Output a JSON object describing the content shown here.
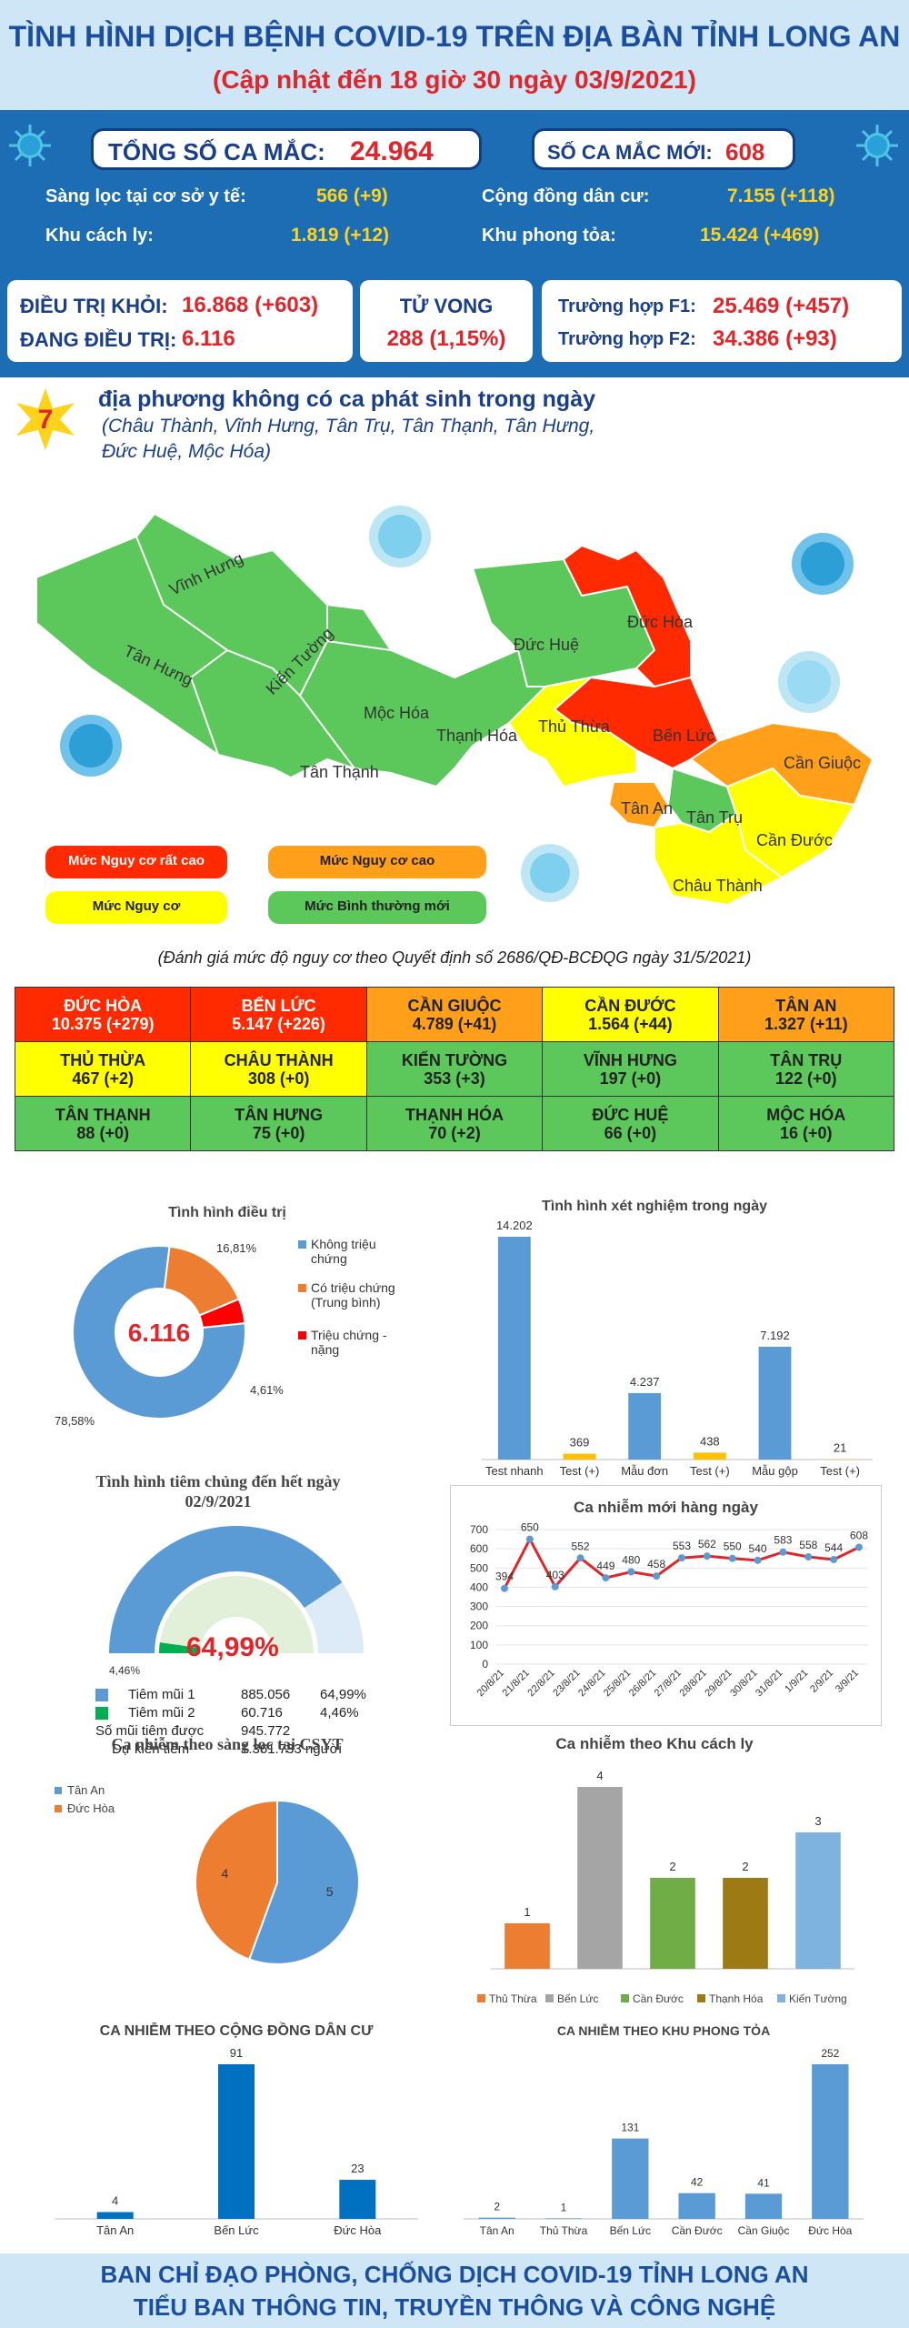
{
  "header": {
    "title": "TÌNH HÌNH DỊCH BỆNH COVID-19 TRÊN ĐỊA BÀN TỈNH LONG AN",
    "subtitle": "(Cập nhật đến 18 giờ 30 ngày 03/9/2021)"
  },
  "stats": {
    "total_label": "TỔNG SỐ CA MẮC:",
    "total_value": "24.964",
    "new_label": "SỐ CA MẮC MỚI:",
    "new_value": "608",
    "screening_label": "Sàng lọc tại cơ sở y tế:",
    "screening_value": "566 (+9)",
    "community_label": "Cộng đồng dân cư:",
    "community_value": "7.155 (+118)",
    "quarantine_label": "Khu cách ly:",
    "quarantine_value": "1.819 (+12)",
    "lockdown_label": "Khu phong tỏa:",
    "lockdown_value": "15.424 (+469)",
    "recovered_label": "ĐIỀU TRỊ KHỎI:",
    "recovered_value": "16.868 (+603)",
    "treating_label": "ĐANG ĐIỀU TRỊ:",
    "treating_value": "6.116",
    "death_label": "TỬ VONG",
    "death_value": "288 (1,15%)",
    "f1_label": "Trường hợp F1:",
    "f1_value": "25.469 (+457)",
    "f2_label": "Trường hợp F2:",
    "f2_value": "34.386 (+93)"
  },
  "map": {
    "badge": "7",
    "headline": "địa phương không có ca phát sinh trong ngày",
    "sub1": "(Châu Thành, Vĩnh Hưng, Tân Trụ, Tân Thạnh, Tân Hưng,",
    "sub2": "Đức Huệ, Mộc Hóa)",
    "districts": [
      "Vĩnh Hưng",
      "Tân Hưng",
      "Kiến Tường",
      "Mộc Hóa",
      "Tân Thạnh",
      "Thạnh Hóa",
      "Đức Huệ",
      "Đức Hòa",
      "Thủ Thừa",
      "Bến Lức",
      "Tân An",
      "Tân Trụ",
      "Cần Giuộc",
      "Cần Đước",
      "Châu Thành"
    ],
    "legend": [
      "Mức Nguy cơ rất cao",
      "Mức Nguy cơ cao",
      "Mức Nguy cơ",
      "Mức Bình thường mới"
    ],
    "legend_colors": [
      "#ff2a00",
      "#ff9f1a",
      "#ffff00",
      "#5cc85c"
    ],
    "note": "(Đánh giá mức độ nguy cơ theo Quyết định số 2686/QĐ-BCĐQG ngày 31/5/2021)"
  },
  "regions": [
    [
      {
        "name": "ĐỨC HÒA",
        "val": "10.375 (+279)",
        "c": "#ff2a00"
      },
      {
        "name": "BẾN LỨC",
        "val": "5.147 (+226)",
        "c": "#ff2a00"
      },
      {
        "name": "CẦN GIUỘC",
        "val": "4.789 (+41)",
        "c": "#ff9f1a"
      },
      {
        "name": "CẦN ĐƯỚC",
        "val": "1.564 (+44)",
        "c": "#ffff00"
      },
      {
        "name": "TÂN AN",
        "val": "1.327 (+11)",
        "c": "#ff9f1a"
      }
    ],
    [
      {
        "name": "THỦ THỪA",
        "val": "467 (+2)",
        "c": "#ffff00"
      },
      {
        "name": "CHÂU THÀNH",
        "val": "308 (+0)",
        "c": "#ffff00"
      },
      {
        "name": "KIẾN TƯỜNG",
        "val": "353 (+3)",
        "c": "#5cc85c"
      },
      {
        "name": "VĨNH HƯNG",
        "val": "197 (+0)",
        "c": "#5cc85c"
      },
      {
        "name": "TÂN TRỤ",
        "val": "122 (+0)",
        "c": "#5cc85c"
      }
    ],
    [
      {
        "name": "TÂN THẠNH",
        "val": "88 (+0)",
        "c": "#5cc85c"
      },
      {
        "name": "TÂN HƯNG",
        "val": "75 (+0)",
        "c": "#5cc85c"
      },
      {
        "name": "THẠNH HÓA",
        "val": "70 (+2)",
        "c": "#5cc85c"
      },
      {
        "name": "ĐỨC HUỆ",
        "val": "66 (+0)",
        "c": "#5cc85c"
      },
      {
        "name": "MỘC HÓA",
        "val": "16 (+0)",
        "c": "#5cc85c"
      }
    ]
  ],
  "chart_data": [
    {
      "type": "pie",
      "title": "Tình hình điều trị",
      "center_label": "6.116",
      "labels": [
        "Không triệu chứng",
        "Có triệu chứng (Trung bình)",
        "Triệu chứng - nặng"
      ],
      "values": [
        78.58,
        16.81,
        4.61
      ],
      "value_labels": [
        "78,58%",
        "16,81%",
        "4,61%"
      ],
      "colors": [
        "#5b9bd5",
        "#ed7d31",
        "#ff0000"
      ]
    },
    {
      "type": "bar",
      "title": "Tình hình xét nghiệm trong ngày",
      "categories": [
        "Test nhanh",
        "Test (+)",
        "Mẫu đơn",
        "Test (+)",
        "Mẫu gộp",
        "Test (+)"
      ],
      "values": [
        14202,
        369,
        4237,
        438,
        7192,
        21
      ],
      "value_labels": [
        "14.202",
        "369",
        "4.237",
        "438",
        "7.192",
        "21"
      ],
      "colors": [
        "#5b9bd5",
        "#ffc000",
        "#5b9bd5",
        "#ffc000",
        "#5b9bd5",
        "#ffc000"
      ]
    },
    {
      "type": "pie",
      "title": "Tình hình tiêm chủng đến hết ngày 02/9/2021",
      "center_label": "64,99%",
      "small_label": "4,46%",
      "rows": [
        {
          "label": "Tiêm mũi 1",
          "value": "885.056",
          "pct": "64,99%"
        },
        {
          "label": "Tiêm mũi 2",
          "value": "60.716",
          "pct": "4,46%"
        },
        {
          "label": "Số mũi tiêm được",
          "value": "945.772",
          "pct": ""
        },
        {
          "label": "Dự kiến tiêm",
          "value": "1.361.733 người",
          "pct": ""
        }
      ],
      "dose1_fraction": 0.6499,
      "dose2_fraction": 0.0446
    },
    {
      "type": "line",
      "title": "Ca nhiễm mới hàng ngày",
      "x": [
        "20/8/21",
        "21/8/21",
        "22/8/21",
        "23/8/21",
        "24/8/21",
        "25/8/21",
        "26/8/21",
        "27/8/21",
        "28/8/21",
        "29/8/21",
        "30/8/21",
        "31/8/21",
        "1/9/21",
        "2/9/21",
        "3/9/21"
      ],
      "values": [
        394,
        650,
        403,
        552,
        449,
        480,
        458,
        553,
        562,
        550,
        540,
        583,
        558,
        544,
        608
      ],
      "ylim": [
        0,
        700
      ],
      "yticks": [
        0,
        100,
        200,
        300,
        400,
        500,
        600,
        700
      ]
    },
    {
      "type": "pie",
      "title": "Ca nhiễm theo sàng lọc tại CSYT",
      "labels": [
        "Tân An",
        "Đức Hòa"
      ],
      "values": [
        5,
        4
      ],
      "colors": [
        "#5b9bd5",
        "#ed7d31"
      ]
    },
    {
      "type": "bar",
      "title": "Ca nhiễm theo Khu cách ly",
      "categories": [
        "Thủ Thừa",
        "Bến Lức",
        "Cần Đước",
        "Thạnh Hóa",
        "Kiến Tường"
      ],
      "values": [
        1,
        4,
        2,
        2,
        3
      ],
      "colors": [
        "#ed7d31",
        "#a5a5a5",
        "#70ad47",
        "#9e7a14",
        "#7eb3e0"
      ]
    },
    {
      "type": "bar",
      "title": "CA NHIỄM THEO CỘNG ĐỒNG DÂN CƯ",
      "categories": [
        "Tân An",
        "Bến Lức",
        "Đức Hòa"
      ],
      "values": [
        4,
        91,
        23
      ],
      "colors": [
        "#0070c0",
        "#0070c0",
        "#0070c0"
      ]
    },
    {
      "type": "bar",
      "title": "CA NHIỄM THEO KHU PHONG TỎA",
      "categories": [
        "Tân An",
        "Thủ Thừa",
        "Bến Lức",
        "Cần Đước",
        "Cần Giuộc",
        "Đức Hòa"
      ],
      "values": [
        2,
        1,
        131,
        42,
        41,
        252
      ],
      "colors": [
        "#5b9bd5",
        "#5b9bd5",
        "#5b9bd5",
        "#5b9bd5",
        "#5b9bd5",
        "#5b9bd5"
      ]
    }
  ],
  "footer": {
    "line1": "BAN CHỈ ĐẠO PHÒNG, CHỐNG DỊCH COVID-19 TỈNH LONG AN",
    "line2": "TIỂU BAN THÔNG TIN, TRUYỀN THÔNG VÀ CÔNG NGHỆ"
  }
}
